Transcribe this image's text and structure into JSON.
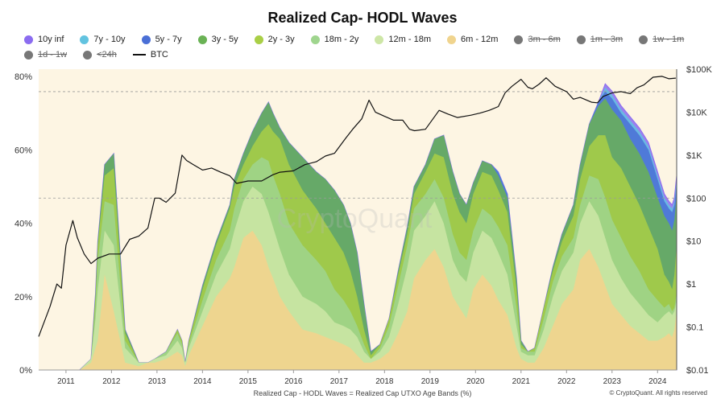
{
  "chart_data": {
    "type": "area",
    "title": "Realized Cap- HODL Waves",
    "caption": "Realized Cap - HODL Waves = Realized Cap UTXO Age Bands (%)",
    "copyright": "© CryptoQuant. All rights reserved",
    "watermark": "CryptoQuant",
    "x_ticks": [
      "2011",
      "2012",
      "2013",
      "2014",
      "2015",
      "2016",
      "2017",
      "2018",
      "2019",
      "2020",
      "2021",
      "2022",
      "2023",
      "2024"
    ],
    "x_range": [
      2010.7,
      2024.72
    ],
    "y_left": {
      "ticks": [
        "0%",
        "20%",
        "40%",
        "60%",
        "80%"
      ],
      "values": [
        0,
        20,
        40,
        60,
        80
      ],
      "range": [
        0,
        82
      ]
    },
    "y_right": {
      "scale": "log",
      "ticks": [
        "$0.01",
        "$0.1",
        "$1",
        "$10",
        "$100",
        "$1K",
        "$10K",
        "$100K"
      ],
      "values": [
        0.01,
        0.1,
        1,
        10,
        100,
        1000,
        10000,
        100000
      ]
    },
    "legend": [
      {
        "name": "10y inf",
        "color": "#8b6cf0",
        "visible": true
      },
      {
        "name": "7y - 10y",
        "color": "#62c3e0",
        "visible": true
      },
      {
        "name": "5y - 7y",
        "color": "#4a6fd6",
        "visible": true
      },
      {
        "name": "3y - 5y",
        "color": "#6ab255",
        "visible": true
      },
      {
        "name": "2y - 3y",
        "color": "#a9cf46",
        "visible": true
      },
      {
        "name": "18m - 2y",
        "color": "#9fd58e",
        "visible": true
      },
      {
        "name": "12m - 18m",
        "color": "#cde6a6",
        "visible": true
      },
      {
        "name": "6m - 12m",
        "color": "#f0d48e",
        "visible": true
      },
      {
        "name": "3m - 6m",
        "color": "#777777",
        "visible": false
      },
      {
        "name": "1m - 3m",
        "color": "#777777",
        "visible": false
      },
      {
        "name": "1w - 1m",
        "color": "#777777",
        "visible": false
      },
      {
        "name": "1d - 1w",
        "color": "#777777",
        "visible": false
      },
      {
        "name": "<24h",
        "color": "#777777",
        "visible": false
      },
      {
        "name": "BTC",
        "color": "#111111",
        "visible": true,
        "line": true
      }
    ],
    "x": [
      2010.7,
      2010.9,
      2011.2,
      2011.6,
      2011.85,
      2011.95,
      2012.0,
      2012.15,
      2012.35,
      2012.6,
      2012.9,
      2013.1,
      2013.25,
      2013.5,
      2013.75,
      2013.85,
      2013.92,
      2014.0,
      2014.3,
      2014.6,
      2014.9,
      2015.0,
      2015.2,
      2015.4,
      2015.6,
      2015.75,
      2015.85,
      2016.0,
      2016.2,
      2016.5,
      2016.8,
      2017.0,
      2017.2,
      2017.4,
      2017.55,
      2017.7,
      2017.85,
      2018.0,
      2018.2,
      2018.4,
      2018.6,
      2018.8,
      2018.95,
      2019.2,
      2019.4,
      2019.6,
      2019.8,
      2019.95,
      2020.1,
      2020.25,
      2020.45,
      2020.65,
      2020.8,
      2021.0,
      2021.2,
      2021.3,
      2021.45,
      2021.6,
      2021.8,
      2022.0,
      2022.2,
      2022.45,
      2022.6,
      2022.8,
      2023.0,
      2023.15,
      2023.3,
      2023.5,
      2023.7,
      2023.9,
      2024.1,
      2024.3,
      2024.45,
      2024.55,
      2024.62,
      2024.67,
      2024.72
    ],
    "series": [
      {
        "name": "6m - 12m",
        "color": "#f0d48e",
        "values": [
          0,
          0,
          0,
          0,
          2,
          6,
          8,
          26,
          16,
          2,
          1,
          2,
          2,
          3,
          5,
          4,
          1,
          4,
          12,
          20,
          25,
          28,
          36,
          38,
          34,
          28,
          25,
          20,
          16,
          11,
          10,
          9,
          8,
          7,
          6,
          4,
          2,
          2,
          3,
          5,
          10,
          16,
          25,
          30,
          33,
          28,
          20,
          17,
          14,
          22,
          26,
          23,
          19,
          15,
          6,
          3,
          2,
          2,
          6,
          12,
          18,
          22,
          30,
          33,
          28,
          23,
          18,
          15,
          12,
          10,
          8,
          8,
          9,
          10,
          9,
          11,
          16
        ]
      },
      {
        "name": "12m - 18m",
        "color": "#cde6a6",
        "values": [
          0,
          0,
          0,
          0,
          3,
          14,
          22,
          38,
          34,
          6,
          2,
          2,
          3,
          4,
          8,
          6,
          2,
          6,
          16,
          26,
          33,
          38,
          46,
          50,
          48,
          43,
          39,
          33,
          26,
          20,
          18,
          16,
          13,
          12,
          11,
          9,
          5,
          3,
          5,
          9,
          18,
          28,
          38,
          42,
          46,
          40,
          30,
          26,
          24,
          32,
          38,
          36,
          32,
          26,
          12,
          5,
          4,
          4,
          11,
          20,
          27,
          32,
          40,
          46,
          42,
          36,
          30,
          25,
          21,
          18,
          15,
          13,
          15,
          16,
          15,
          16,
          19
        ]
      },
      {
        "name": "18m - 2y",
        "color": "#9fd58e",
        "values": [
          0,
          0,
          0,
          0,
          3,
          17,
          30,
          46,
          45,
          8,
          2,
          2,
          3,
          5,
          10,
          7,
          2,
          7,
          19,
          30,
          38,
          44,
          52,
          56,
          58,
          57,
          53,
          48,
          40,
          34,
          30,
          27,
          22,
          19,
          16,
          12,
          7,
          3,
          6,
          12,
          23,
          34,
          44,
          48,
          52,
          47,
          37,
          32,
          30,
          38,
          44,
          42,
          39,
          34,
          17,
          6,
          5,
          5,
          14,
          24,
          31,
          36,
          45,
          53,
          52,
          47,
          41,
          36,
          31,
          27,
          22,
          19,
          17,
          18,
          16,
          17,
          21
        ]
      },
      {
        "name": "2y - 3y",
        "color": "#a9cf46",
        "values": [
          0,
          0,
          0,
          0,
          3,
          20,
          34,
          53,
          55,
          10,
          2,
          2,
          3,
          5,
          11,
          8,
          2,
          8,
          22,
          34,
          44,
          50,
          56,
          61,
          65,
          67,
          65,
          63,
          56,
          49,
          44,
          40,
          36,
          32,
          27,
          20,
          11,
          4,
          7,
          14,
          26,
          37,
          48,
          54,
          59,
          58,
          48,
          43,
          40,
          48,
          54,
          53,
          49,
          43,
          22,
          7,
          5,
          6,
          17,
          27,
          35,
          42,
          52,
          61,
          64,
          64,
          58,
          55,
          50,
          45,
          39,
          33,
          26,
          24,
          22,
          26,
          34
        ]
      },
      {
        "name": "3y - 5y",
        "color": "#6ab255",
        "values": [
          0,
          0,
          0,
          0,
          3,
          21,
          35,
          56,
          59,
          11,
          2,
          2,
          3,
          5,
          11,
          8,
          2,
          8,
          23,
          35,
          45,
          52,
          59,
          65,
          70,
          73,
          70,
          66,
          62,
          58,
          54,
          52,
          49,
          45,
          40,
          32,
          18,
          5,
          7,
          14,
          27,
          39,
          50,
          56,
          63,
          64,
          54,
          48,
          45,
          51,
          57,
          56,
          53,
          47,
          25,
          8,
          5,
          6,
          17,
          28,
          37,
          45,
          56,
          67,
          72,
          74,
          71,
          68,
          63,
          59,
          54,
          47,
          42,
          40,
          38,
          41,
          48
        ]
      },
      {
        "name": "5y - 7y",
        "color": "#4a6fd6",
        "values": [
          0,
          0,
          0,
          0,
          3,
          21,
          35,
          56,
          59,
          11,
          2,
          2,
          3,
          5,
          11,
          8,
          2,
          8,
          23,
          35,
          45,
          52,
          59,
          65,
          70,
          73,
          70,
          66,
          62,
          58,
          54,
          52,
          49,
          45,
          40,
          32,
          18,
          5,
          7,
          14,
          27,
          39,
          50,
          56,
          63,
          64,
          54,
          48,
          45,
          51,
          57,
          56,
          54,
          48,
          25,
          8,
          5,
          6,
          17,
          28,
          37,
          45,
          56,
          67,
          73,
          76,
          74,
          70,
          67,
          64,
          60,
          52,
          46,
          44,
          43,
          45,
          51
        ]
      },
      {
        "name": "7y - 10y",
        "color": "#62c3e0",
        "values": [
          0,
          0,
          0,
          0,
          3,
          21,
          35,
          56,
          59,
          11,
          2,
          2,
          3,
          5,
          11,
          8,
          2,
          8,
          23,
          35,
          45,
          52,
          59,
          65,
          70,
          73,
          70,
          66,
          62,
          58,
          54,
          52,
          49,
          45,
          40,
          32,
          18,
          5,
          7,
          14,
          27,
          39,
          50,
          56,
          63,
          64,
          54,
          48,
          45,
          51,
          57,
          56,
          54,
          48,
          25,
          8,
          5,
          6,
          17,
          28,
          37,
          45,
          56,
          67,
          73,
          77,
          75,
          71,
          68,
          65,
          61,
          53,
          47,
          45,
          44,
          46,
          52
        ]
      },
      {
        "name": "10y inf",
        "color": "#8b6cf0",
        "values": [
          0,
          0,
          0,
          0,
          3,
          21,
          35,
          56,
          59,
          11,
          2,
          2,
          3,
          5,
          11,
          8,
          2,
          8,
          23,
          35,
          45,
          52,
          59,
          65,
          70,
          73,
          70,
          66,
          62,
          58,
          54,
          52,
          49,
          45,
          40,
          32,
          18,
          5,
          7,
          14,
          27,
          39,
          50,
          56,
          63,
          64,
          54,
          48,
          45,
          51,
          57,
          56,
          54,
          48,
          25,
          8,
          5,
          6,
          17,
          28,
          37,
          45,
          56,
          67,
          73,
          78,
          76,
          72,
          69,
          66,
          62,
          54,
          48,
          46,
          45,
          47,
          53
        ]
      }
    ],
    "btc": {
      "x": [
        2010.7,
        2010.95,
        2011.1,
        2011.2,
        2011.3,
        2011.45,
        2011.55,
        2011.7,
        2011.85,
        2012.0,
        2012.25,
        2012.5,
        2012.7,
        2012.9,
        2013.1,
        2013.25,
        2013.35,
        2013.5,
        2013.7,
        2013.85,
        2013.95,
        2014.1,
        2014.3,
        2014.5,
        2014.7,
        2014.9,
        2015.05,
        2015.3,
        2015.6,
        2015.85,
        2016.0,
        2016.3,
        2016.55,
        2016.8,
        2017.0,
        2017.2,
        2017.45,
        2017.6,
        2017.8,
        2017.96,
        2018.1,
        2018.3,
        2018.5,
        2018.7,
        2018.85,
        2018.96,
        2019.2,
        2019.5,
        2019.7,
        2019.9,
        2020.2,
        2020.4,
        2020.6,
        2020.8,
        2020.95,
        2021.1,
        2021.3,
        2021.45,
        2021.55,
        2021.7,
        2021.85,
        2022.05,
        2022.3,
        2022.45,
        2022.6,
        2022.85,
        2022.98,
        2023.1,
        2023.3,
        2023.5,
        2023.7,
        2023.85,
        2024.0,
        2024.2,
        2024.4,
        2024.55,
        2024.7
      ],
      "y": [
        0.06,
        0.3,
        1,
        0.8,
        8,
        30,
        12,
        5,
        3,
        4,
        5,
        5,
        11,
        13,
        20,
        100,
        100,
        80,
        130,
        1000,
        750,
        600,
        450,
        500,
        400,
        330,
        220,
        250,
        250,
        350,
        400,
        430,
        600,
        700,
        950,
        1100,
        2500,
        4000,
        7000,
        19000,
        10000,
        8000,
        6500,
        6500,
        4000,
        3700,
        4000,
        11000,
        9000,
        7500,
        8500,
        9500,
        11000,
        13500,
        28000,
        40000,
        58000,
        38000,
        35000,
        45000,
        63000,
        40000,
        30000,
        20000,
        22000,
        17000,
        16500,
        23000,
        28000,
        30000,
        27000,
        37000,
        43000,
        65000,
        68000,
        60000,
        62000
      ]
    }
  }
}
